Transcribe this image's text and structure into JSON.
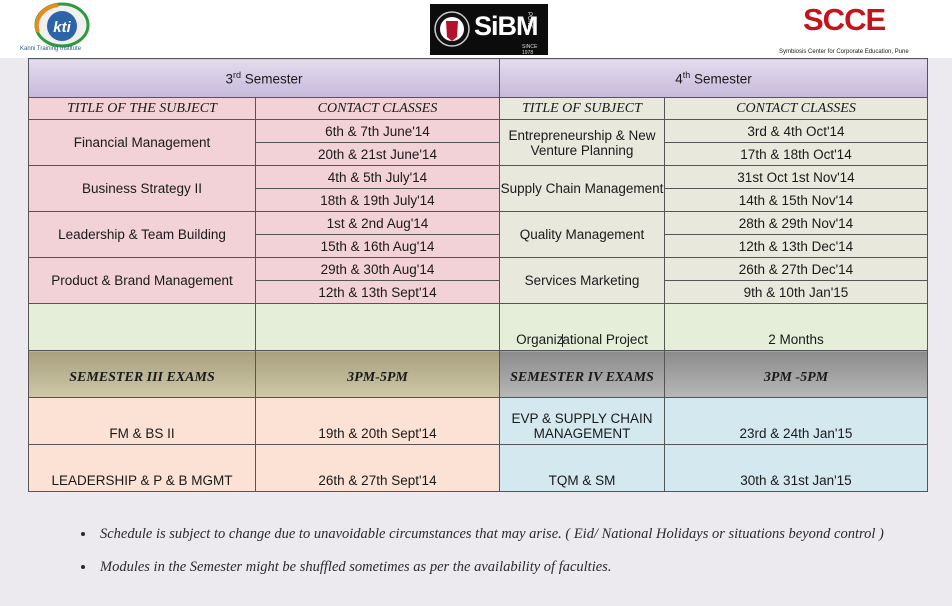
{
  "logos": {
    "kti": {
      "text": "kti",
      "subtitle": "Kanni Training Institute"
    },
    "sibm": {
      "text": "SiBM",
      "city": "PUNE",
      "since": "SINCE 1978"
    },
    "scce": {
      "text": "SCCE",
      "subtitle": "Symbiosis Center for Corporate Education, Pune"
    }
  },
  "header": {
    "sem3_num": "3",
    "sem3_sup": "rd",
    "sem3_label": " Semester",
    "sem4_num": "4",
    "sem4_sup": "th",
    "sem4_label": " Semester"
  },
  "columns": {
    "sem3_subject": "TITLE OF THE SUBJECT",
    "sem3_classes": "CONTACT CLASSES",
    "sem4_subject": "TITLE OF SUBJECT",
    "sem4_classes": "CONTACT CLASSES"
  },
  "rows": [
    {
      "s3": "Financial Management",
      "d3": [
        "6th & 7th June'14",
        "20th & 21st June'14"
      ],
      "s4": "Entrepreneurship & New Venture Planning",
      "d4": [
        "3rd & 4th Oct'14",
        "17th & 18th Oct'14"
      ]
    },
    {
      "s3": "Business Strategy II",
      "d3": [
        "4th & 5th July'14",
        "18th & 19th July'14"
      ],
      "s4": "Supply Chain Management",
      "d4": [
        "31st Oct  1st Nov'14",
        "14th & 15th Nov'14"
      ]
    },
    {
      "s3": "Leadership & Team Building",
      "d3": [
        "1st & 2nd Aug'14",
        "15th & 16th Aug'14"
      ],
      "s4": "Quality Management",
      "d4": [
        "28th & 29th Nov'14",
        "12th & 13th Dec'14"
      ]
    },
    {
      "s3": "Product & Brand Management",
      "d3": [
        "29th & 30th Aug'14",
        "12th & 13th Sept'14"
      ],
      "s4": "Services Marketing",
      "d4": [
        "26th & 27th Dec'14",
        "9th & 10th Jan'15"
      ]
    }
  ],
  "project": {
    "title_a": "Organiz",
    "title_b": "ational Project",
    "duration": "2 Months"
  },
  "exams_header": {
    "sem3": "SEMESTER III   EXAMS",
    "sem3_time": "3PM-5PM",
    "sem4": "SEMESTER IV EXAMS",
    "sem4_time": "3PM -5PM"
  },
  "exams": [
    {
      "s3": "FM & BS II",
      "d3": "19th & 20th Sept'14",
      "s4": "EVP  &  SUPPLY CHAIN MANAGEMENT",
      "d4": "23rd & 24th Jan'15"
    },
    {
      "s3": "LEADERSHIP & P & B MGMT",
      "d3": "26th & 27th Sept'14",
      "s4": "TQM & SM",
      "d4": "30th & 31st Jan'15"
    }
  ],
  "notes": [
    "Schedule is subject to change due to unavoidable circumstances that may arise. ( Eid/ National Holidays or situations beyond control )",
    "Modules in the Semester might be shuffled  sometimes as per the availability of faculties."
  ]
}
